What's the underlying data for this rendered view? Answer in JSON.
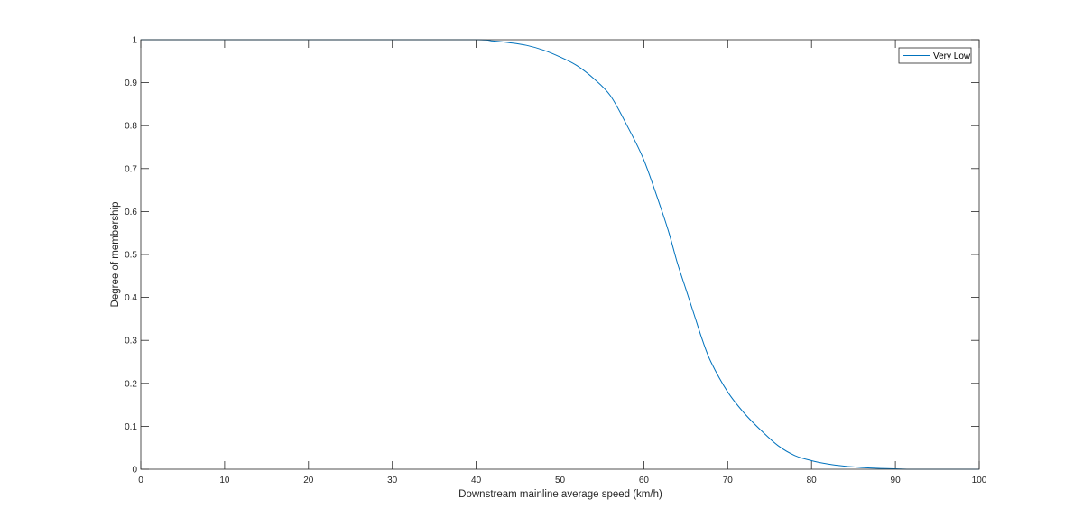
{
  "chart_data": {
    "type": "line",
    "title": "",
    "xlabel": "Downstream mainline average speed (km/h)",
    "ylabel": "Degree of membership",
    "xlim": [
      0,
      100
    ],
    "ylim": [
      0,
      1
    ],
    "xticks": [
      0,
      10,
      20,
      30,
      40,
      50,
      60,
      70,
      80,
      90,
      100
    ],
    "yticks": [
      0,
      0.1,
      0.2,
      0.3,
      0.4,
      0.5,
      0.6,
      0.7,
      0.8,
      0.9,
      1
    ],
    "grid": false,
    "legend_position": "top-right",
    "series": [
      {
        "name": "Very Low",
        "color": "#0072bd",
        "x": [
          0,
          10,
          20,
          30,
          40,
          42,
          44,
          46,
          48,
          50,
          52,
          54,
          56,
          58,
          60,
          62,
          63,
          64,
          65,
          66,
          67,
          68,
          70,
          72,
          74,
          76,
          78,
          80,
          82,
          84,
          86,
          88,
          90,
          92,
          95,
          100
        ],
        "y": [
          1,
          1,
          1,
          1,
          1,
          0.997,
          0.993,
          0.987,
          0.976,
          0.96,
          0.94,
          0.91,
          0.87,
          0.8,
          0.72,
          0.61,
          0.55,
          0.48,
          0.42,
          0.36,
          0.3,
          0.25,
          0.18,
          0.13,
          0.09,
          0.055,
          0.032,
          0.02,
          0.012,
          0.007,
          0.004,
          0.002,
          0.001,
          0,
          0,
          0
        ]
      }
    ]
  }
}
